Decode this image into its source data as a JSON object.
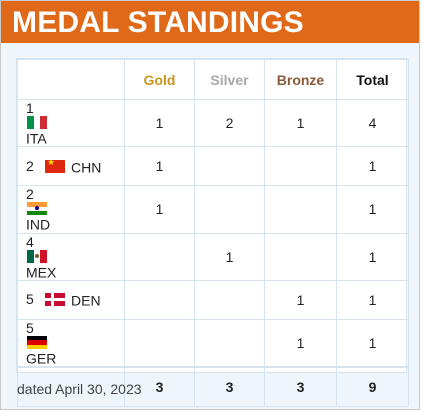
{
  "widget": {
    "title": "MEDAL STANDINGS",
    "dated": "dated April 30, 2023"
  },
  "columns": {
    "gold": "Gold",
    "silver": "Silver",
    "bronze": "Bronze",
    "total": "Total"
  },
  "colors": {
    "header_bg": "#df6918",
    "gold": "#c8961e",
    "silver": "#a8a8a8",
    "bronze": "#8a5a38"
  },
  "rows": [
    {
      "rank": "1",
      "code": "ITA",
      "flag": "italy-flag",
      "gold": "1",
      "silver": "2",
      "bronze": "1",
      "total": "4"
    },
    {
      "rank": "2",
      "code": "CHN",
      "flag": "china-flag",
      "gold": "1",
      "silver": "",
      "bronze": "",
      "total": "1"
    },
    {
      "rank": "2",
      "code": "IND",
      "flag": "india-flag",
      "gold": "1",
      "silver": "",
      "bronze": "",
      "total": "1"
    },
    {
      "rank": "4",
      "code": "MEX",
      "flag": "mexico-flag",
      "gold": "",
      "silver": "1",
      "bronze": "",
      "total": "1"
    },
    {
      "rank": "5",
      "code": "DEN",
      "flag": "denmark-flag",
      "gold": "",
      "silver": "",
      "bronze": "1",
      "total": "1"
    },
    {
      "rank": "5",
      "code": "GER",
      "flag": "germany-flag",
      "gold": "",
      "silver": "",
      "bronze": "1",
      "total": "1"
    }
  ],
  "totals": {
    "gold": "3",
    "silver": "3",
    "bronze": "3",
    "total": "9"
  }
}
